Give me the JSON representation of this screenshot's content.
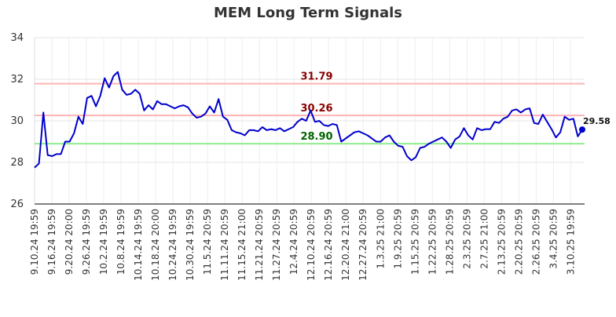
{
  "chart_data": {
    "type": "line",
    "title": "MEM Long Term Signals",
    "xlabel": "",
    "ylabel": "",
    "ylim": [
      26,
      34
    ],
    "y_ticks": [
      26,
      28,
      30,
      32,
      34
    ],
    "grid": true,
    "x_tick_labels": [
      "9.10.24 19:59",
      "9.16.24 19:59",
      "9.20.24 20:00",
      "9.26.24 19:59",
      "10.2.24 19:59",
      "10.8.24 19:59",
      "10.14.24 19:59",
      "10.18.24 20:00",
      "10.24.24 19:59",
      "10.30.24 19:59",
      "11.5.24 20:59",
      "11.11.24 20:59",
      "11.15.24 21:00",
      "11.21.24 20:59",
      "11.27.24 20:59",
      "12.4.24 20:59",
      "12.10.24 20:59",
      "12.16.24 20:59",
      "12.20.24 21:00",
      "12.27.24 20:59",
      "1.3.25 21:00",
      "1.9.25 20:59",
      "1.15.25 20:59",
      "1.22.25 20:59",
      "1.28.25 20:59",
      "2.3.25 20:59",
      "2.7.25 21:00",
      "2.13.25 20:59",
      "2.20.25 20:59",
      "2.26.25 20:59",
      "3.4.25 20:59",
      "3.10.25 19:59"
    ],
    "series": [
      {
        "color": "#0000cc",
        "values": [
          27.75,
          27.95,
          30.4,
          28.35,
          28.3,
          28.4,
          28.4,
          29.0,
          29.0,
          29.4,
          30.2,
          29.85,
          31.1,
          31.2,
          30.7,
          31.2,
          32.05,
          31.6,
          32.15,
          32.35,
          31.5,
          31.25,
          31.3,
          31.5,
          31.3,
          30.5,
          30.75,
          30.55,
          30.95,
          30.8,
          30.8,
          30.7,
          30.6,
          30.7,
          30.75,
          30.65,
          30.35,
          30.15,
          30.2,
          30.35,
          30.7,
          30.4,
          31.05,
          30.2,
          30.05,
          29.55,
          29.45,
          29.4,
          29.3,
          29.55,
          29.55,
          29.5,
          29.7,
          29.55,
          29.6,
          29.55,
          29.65,
          29.5,
          29.6,
          29.7,
          29.95,
          30.1,
          30.0,
          30.5,
          29.95,
          30.0,
          29.8,
          29.75,
          29.85,
          29.8,
          29.0,
          29.15,
          29.3,
          29.45,
          29.5,
          29.4,
          29.3,
          29.15,
          29.0,
          29.0,
          29.2,
          29.3,
          29.0,
          28.8,
          28.75,
          28.3,
          28.1,
          28.25,
          28.7,
          28.75,
          28.9,
          29.0,
          29.1,
          29.2,
          29.0,
          28.7,
          29.1,
          29.25,
          29.65,
          29.3,
          29.1,
          29.65,
          29.55,
          29.6,
          29.6,
          29.95,
          29.9,
          30.1,
          30.2,
          30.5,
          30.55,
          30.4,
          30.55,
          30.6,
          29.9,
          29.85,
          30.3,
          29.95,
          29.6,
          29.2,
          29.45,
          30.2,
          30.05,
          30.1,
          29.25,
          29.58
        ]
      }
    ],
    "horizontal_lines": [
      {
        "value": 31.79,
        "label": "31.79",
        "line_color": "#ffb3b3",
        "label_color": "#8b0000"
      },
      {
        "value": 30.26,
        "label": "30.26",
        "line_color": "#ffb3b3",
        "label_color": "#8b0000"
      },
      {
        "value": 28.9,
        "label": "28.90",
        "line_color": "#90ee90",
        "label_color": "#006400"
      }
    ],
    "last_value_label": "29.58"
  }
}
